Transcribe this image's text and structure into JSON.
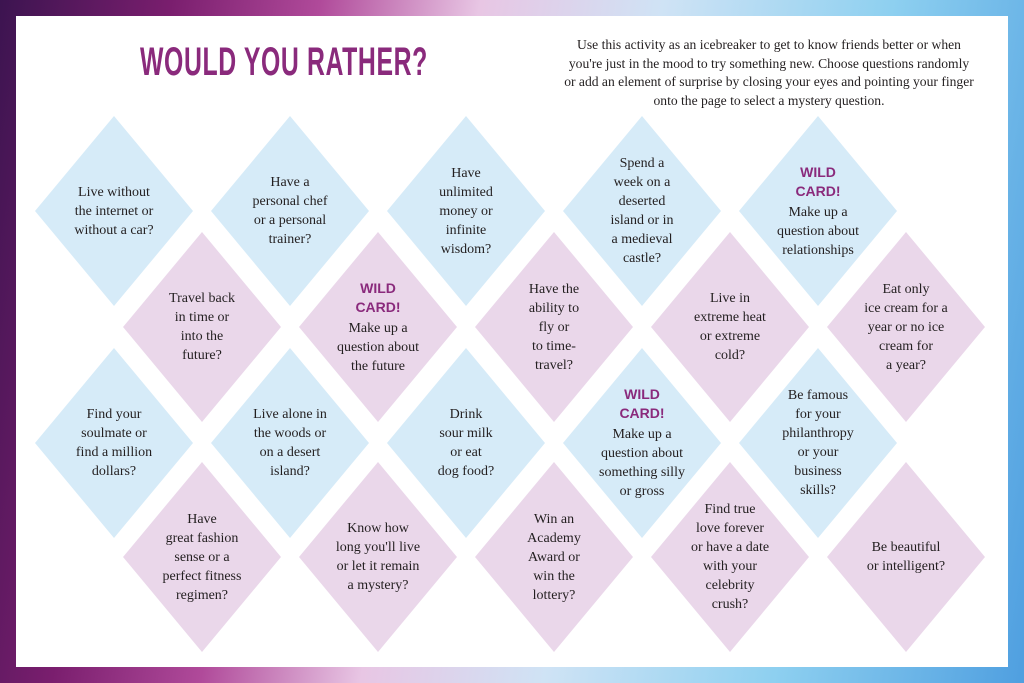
{
  "title": "WOULD YOU RATHER?",
  "intro": "Use this activity as an icebreaker to get to know friends better or when you're just in the mood to try something new. Choose questions randomly or add an element of surprise by closing your eyes and pointing your finger onto the page to select a mystery question.",
  "colors": {
    "accent": "#8a2a7c",
    "blue_tile": "#d6ebf8",
    "pink_tile": "#ead7ea"
  },
  "questions": {
    "q1": "Live without\nthe internet or\nwithout a car?",
    "q2": "Have a\npersonal chef\nor a personal\ntrainer?",
    "q3": "Have\nunlimited\nmoney or\ninfinite\nwisdom?",
    "q4": "Spend a\nweek on a\ndeserted\nisland or in\na medieval\ncastle?",
    "q5_wild": "WILD\nCARD!",
    "q5": "Make up a\nquestion about\nrelationships",
    "q6": "Travel back\nin time or\ninto the\nfuture?",
    "q7_wild": "WILD\nCARD!",
    "q7": "Make up a\nquestion about\nthe future",
    "q8": "Have the\nability to\nfly or\nto time-\ntravel?",
    "q9": "Live in\nextreme heat\nor extreme\ncold?",
    "q10": "Eat only\nice cream for a\nyear or no ice\ncream for\na year?",
    "q11": "Find your\nsoulmate or\nfind a million\ndollars?",
    "q12": "Live alone in\nthe woods or\non a desert\nisland?",
    "q13": "Drink\nsour milk\nor eat\ndog food?",
    "q14_wild": "WILD\nCARD!",
    "q14": "Make up a\nquestion about\nsomething silly\nor gross",
    "q15": "Be famous\nfor your\nphilanthropy\nor your\nbusiness\nskills?",
    "q16": "Have\ngreat fashion\nsense or a\nperfect fitness\nregimen?",
    "q17": "Know how\nlong you'll live\nor let it remain\na mystery?",
    "q18": "Win an\nAcademy\nAward or\nwin the\nlottery?",
    "q19": "Find true\nlove forever\nor have a date\nwith your\ncelebrity\ncrush?",
    "q20": "Be beautiful\nor intelligent?"
  }
}
